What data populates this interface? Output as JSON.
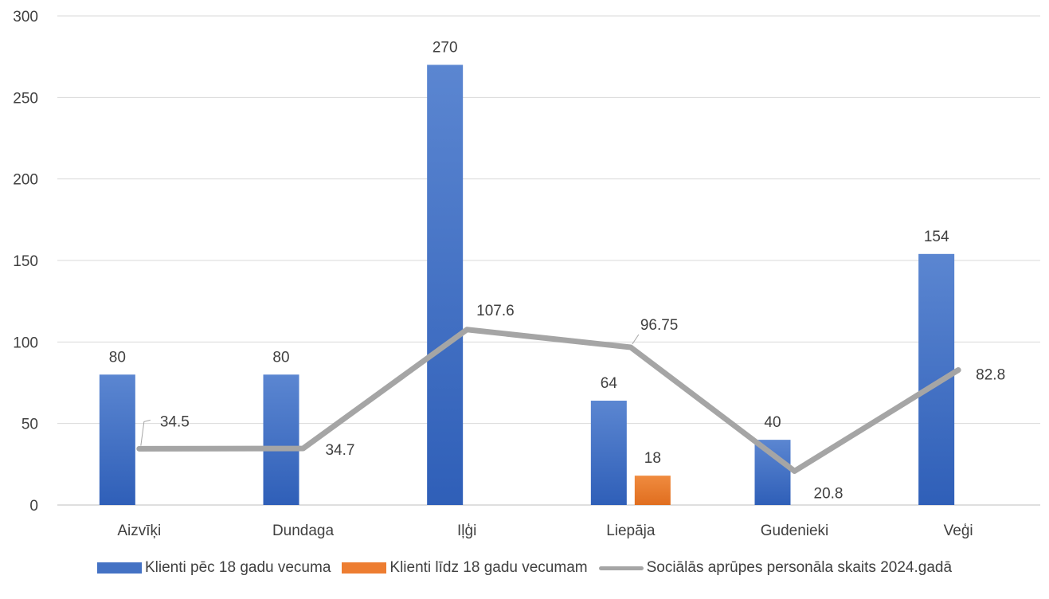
{
  "chart_data": {
    "type": "bar",
    "categories": [
      "Aizvīķi",
      "Dundaga",
      "Iļģi",
      "Liepāja",
      "Gudenieki",
      "Veģi"
    ],
    "series": [
      {
        "name": "Klienti pēc 18 gadu vecuma",
        "kind": "bar",
        "color": "#4472C4",
        "values": [
          80,
          80,
          270,
          64,
          40,
          154
        ],
        "labels": [
          "80",
          "80",
          "270",
          "64",
          "40",
          "154"
        ]
      },
      {
        "name": "Klienti līdz 18 gadu vecumam",
        "kind": "bar",
        "color": "#ED7D31",
        "values": [
          null,
          null,
          null,
          18,
          null,
          null
        ],
        "labels": [
          "",
          "",
          "",
          "18",
          "",
          ""
        ]
      },
      {
        "name": "Sociālās aprūpes personāla skaits 2024.gadā",
        "kind": "line",
        "color": "#A5A5A5",
        "values": [
          34.5,
          34.7,
          107.6,
          96.75,
          20.8,
          82.8
        ],
        "labels": [
          "34.5",
          "34.7",
          "107.6",
          "96.75",
          "20.8",
          "82.8"
        ]
      }
    ],
    "yticks": [
      "0",
      "50",
      "100",
      "150",
      "200",
      "250",
      "300"
    ],
    "ylim": [
      0,
      300
    ],
    "grid": true,
    "legend_position": "bottom"
  }
}
